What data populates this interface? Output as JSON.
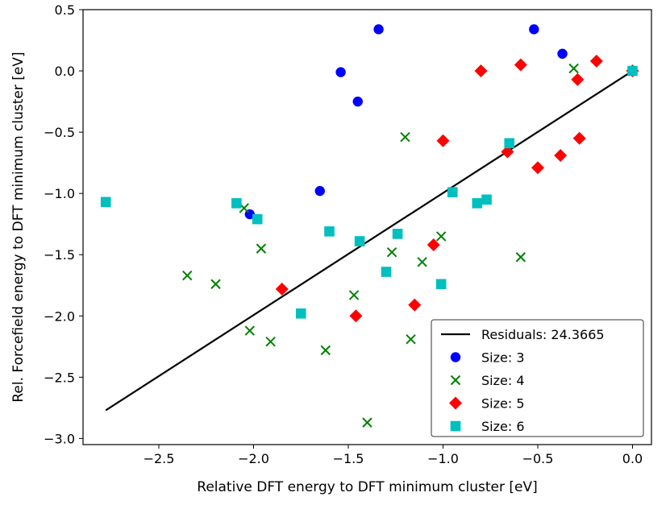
{
  "chart_data": {
    "type": "scatter",
    "title": "",
    "xlabel": "Relative DFT energy to DFT minimum cluster [eV]",
    "ylabel": "Rel. Forcefield energy to DFT minimum cluster [eV]",
    "xlim": [
      -2.9,
      0.1
    ],
    "ylim": [
      -3.05,
      0.5
    ],
    "xticks": [
      -2.5,
      -2.0,
      -1.5,
      -1.0,
      -0.5,
      0.0
    ],
    "xtick_labels": [
      "−2.5",
      "−2.0",
      "−1.5",
      "−1.0",
      "−0.5",
      "0.0"
    ],
    "yticks": [
      0.5,
      0.0,
      -0.5,
      -1.0,
      -1.5,
      -2.0,
      -2.5,
      -3.0
    ],
    "ytick_labels": [
      "0.5",
      "0.0",
      "−0.5",
      "−1.0",
      "−1.5",
      "−2.0",
      "−2.5",
      "−3.0"
    ],
    "legend_position": "lower-right",
    "line": {
      "name": "Residuals: 24.3665",
      "color": "#000000",
      "x": [
        -2.78,
        0.0
      ],
      "y": [
        -2.77,
        0.0
      ]
    },
    "series": [
      {
        "name": "Size: 3",
        "marker": "circle",
        "color": "#0000ff",
        "x": [
          -1.34,
          -0.52,
          -0.37,
          -1.54,
          -1.45,
          -1.65,
          -2.02,
          0.0
        ],
        "y": [
          0.34,
          0.34,
          0.14,
          -0.01,
          -0.25,
          -0.98,
          -1.17,
          0.0
        ]
      },
      {
        "name": "Size: 4",
        "marker": "x",
        "color": "#008000",
        "x": [
          -0.31,
          -1.2,
          -2.05,
          -1.96,
          -2.35,
          -2.2,
          -1.27,
          -1.01,
          -1.11,
          -1.47,
          -2.02,
          -1.91,
          -1.62,
          -1.17,
          -1.4,
          -0.59,
          0.0
        ],
        "y": [
          0.02,
          -0.54,
          -1.12,
          -1.45,
          -1.67,
          -1.74,
          -1.48,
          -1.35,
          -1.56,
          -1.83,
          -2.12,
          -2.21,
          -2.28,
          -2.19,
          -2.87,
          -1.52,
          0.0
        ]
      },
      {
        "name": "Size: 5",
        "marker": "diamond",
        "color": "#ff0000",
        "x": [
          -0.8,
          -0.59,
          -0.29,
          -0.19,
          -0.28,
          -1.0,
          -0.66,
          -0.38,
          -0.5,
          -1.05,
          -1.85,
          -1.15,
          -1.46,
          0.0
        ],
        "y": [
          0.0,
          0.05,
          -0.07,
          0.08,
          -0.55,
          -0.57,
          -0.66,
          -0.69,
          -0.79,
          -1.42,
          -1.78,
          -1.91,
          -2.0,
          0.0
        ]
      },
      {
        "name": "Size: 6",
        "marker": "square",
        "color": "#00bfbf",
        "x": [
          -2.78,
          -2.09,
          -1.98,
          -1.6,
          -1.44,
          -1.24,
          -1.3,
          -1.01,
          -0.95,
          -0.82,
          -0.77,
          -0.65,
          -1.75,
          0.0
        ],
        "y": [
          -1.07,
          -1.08,
          -1.21,
          -1.31,
          -1.39,
          -1.33,
          -1.64,
          -1.74,
          -0.99,
          -1.08,
          -1.05,
          -0.59,
          -1.98,
          0.0
        ]
      }
    ]
  }
}
